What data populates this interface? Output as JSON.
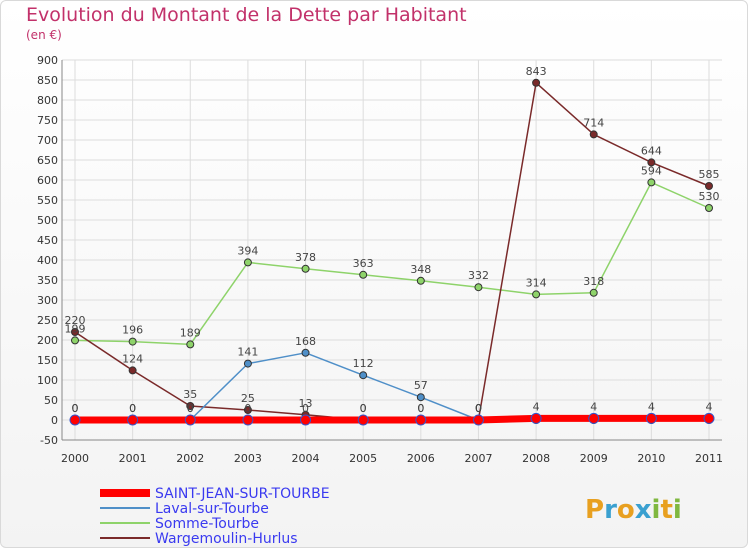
{
  "title": "Evolution du Montant de la Dette par Habitant",
  "unit_label": "(en €)",
  "logo": {
    "text": "Proxiti",
    "letters": [
      {
        "ch": "P",
        "color": "#e8a020"
      },
      {
        "ch": "r",
        "color": "#3aa0d0"
      },
      {
        "ch": "o",
        "color": "#e8a020"
      },
      {
        "ch": "x",
        "color": "#3aa0d0"
      },
      {
        "ch": "i",
        "color": "#80b840"
      },
      {
        "ch": "t",
        "color": "#e8a020"
      },
      {
        "ch": "i",
        "color": "#80b840"
      }
    ]
  },
  "chart_data": {
    "type": "line",
    "title": "Evolution du Montant de la Dette par Habitant",
    "ylabel": "(en €)",
    "xlabel": "",
    "x": [
      "2000",
      "2001",
      "2002",
      "2003",
      "2004",
      "2005",
      "2006",
      "2007",
      "2008",
      "2009",
      "2010",
      "2011"
    ],
    "ylim": [
      -50,
      900
    ],
    "yticks": [
      -50,
      0,
      50,
      100,
      150,
      200,
      250,
      300,
      350,
      400,
      450,
      500,
      550,
      600,
      650,
      700,
      750,
      800,
      850,
      900
    ],
    "grid": true,
    "legend_position": "bottom-left",
    "series": [
      {
        "name": "SAINT-JEAN-SUR-TOURBE",
        "color": "#ff0000",
        "values": [
          0,
          0,
          0,
          0,
          0,
          0,
          0,
          0,
          4,
          4,
          4,
          4
        ],
        "labels": [
          "0",
          "0",
          "0",
          "0",
          "0",
          "0",
          "0",
          "0",
          "4",
          "4",
          "4",
          "4"
        ]
      },
      {
        "name": "Laval-sur-Tourbe",
        "color": "#4f8fc8",
        "values": [
          0,
          0,
          0,
          141,
          168,
          112,
          57,
          0,
          0,
          0,
          0,
          0
        ],
        "labels": [
          "0",
          "0",
          "0",
          "141",
          "168",
          "112",
          "57",
          "0",
          "",
          "",
          "",
          ""
        ]
      },
      {
        "name": "Somme-Tourbe",
        "color": "#8ed36a",
        "values": [
          199,
          196,
          189,
          394,
          378,
          363,
          348,
          332,
          314,
          318,
          594,
          530
        ],
        "labels": [
          "199",
          "196",
          "189",
          "394",
          "378",
          "363",
          "348",
          "332",
          "314",
          "318",
          "594",
          "530"
        ]
      },
      {
        "name": "Wargemoulin-Hurlus",
        "color": "#7a2a2a",
        "values": [
          220,
          124,
          35,
          25,
          13,
          0,
          0,
          0,
          843,
          714,
          644,
          585
        ],
        "labels": [
          "220",
          "124",
          "35",
          "25",
          "13",
          "0",
          "0",
          "0",
          "843",
          "714",
          "644",
          "585"
        ]
      }
    ]
  }
}
